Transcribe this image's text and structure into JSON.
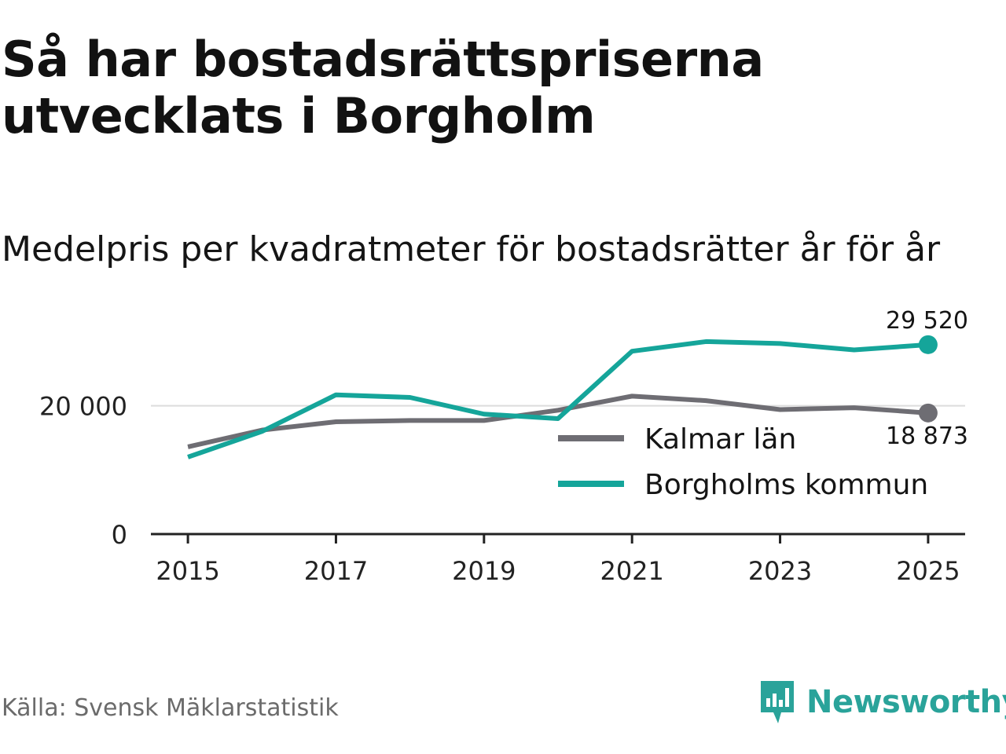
{
  "header": {
    "title": "Så har bostadsrättspriserna utvecklats i Borgholm",
    "subtitle": "Medelpris per kvadratmeter för bostadsrätter år för år"
  },
  "footer": {
    "source": "Källa: Svensk Mäklarstatistik",
    "brand": "Newsworthy"
  },
  "colors": {
    "kalmar": "#6e6d73",
    "borgholm": "#15a59a",
    "brand": "#2aa39a"
  },
  "chart_data": {
    "type": "line",
    "title": "Så har bostadsrättspriserna utvecklats i Borgholm",
    "subtitle": "Medelpris per kvadratmeter för bostadsrätter år för år",
    "xlabel": "",
    "ylabel": "",
    "x": [
      2015,
      2016,
      2017,
      2018,
      2019,
      2020,
      2021,
      2022,
      2023,
      2024,
      2025
    ],
    "xticks": [
      "2015",
      "2017",
      "2019",
      "2021",
      "2023",
      "2025"
    ],
    "xlim": [
      2014.5,
      2025.5
    ],
    "yticks": [
      0,
      20000
    ],
    "ytick_labels": [
      "0",
      "20 000"
    ],
    "ylim": [
      0,
      35500
    ],
    "grid": "horizontal",
    "legend_position": "bottom-right",
    "series": [
      {
        "name": "Kalmar län",
        "color": "#6e6d73",
        "values": [
          13600,
          16200,
          17500,
          17700,
          17700,
          19300,
          21500,
          20800,
          19400,
          19700,
          18873
        ],
        "end_label": "18 873"
      },
      {
        "name": "Borgholms kommun",
        "color": "#15a59a",
        "values": [
          12000,
          16000,
          21700,
          21300,
          18700,
          18000,
          28500,
          30000,
          29700,
          28700,
          29520
        ],
        "end_label": "29 520"
      }
    ]
  }
}
